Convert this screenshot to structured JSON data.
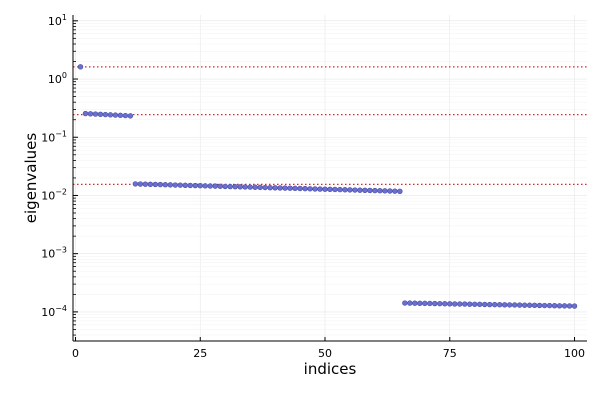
{
  "chart_data": {
    "type": "scatter",
    "xlabel": "indices",
    "ylabel": "eigenvalues",
    "y_scale": "log10",
    "xlim": [
      -0.5,
      102.5
    ],
    "ylim_exp": [
      -4.5,
      1.1
    ],
    "x_ticks": [
      {
        "value": 0,
        "label": "0"
      },
      {
        "value": 25,
        "label": "25"
      },
      {
        "value": 50,
        "label": "50"
      },
      {
        "value": 75,
        "label": "75"
      },
      {
        "value": 100,
        "label": "100"
      }
    ],
    "y_ticks": [
      {
        "exp": -4,
        "base": "10",
        "sup": "−4"
      },
      {
        "exp": -3,
        "base": "10",
        "sup": "−3"
      },
      {
        "exp": -2,
        "base": "10",
        "sup": "−2"
      },
      {
        "exp": -1,
        "base": "10",
        "sup": "−1"
      },
      {
        "exp": 0,
        "base": "10",
        "sup": "0"
      },
      {
        "exp": 1,
        "base": "10",
        "sup": "1"
      }
    ],
    "grid": true,
    "legend": false,
    "point_color": "#6b6fcf",
    "point_edge": "#4a4fa8",
    "reference_color": "#d62728",
    "reference_lines": [
      1.62,
      0.245,
      0.0155
    ],
    "groups": [
      {
        "x_start": 1,
        "x_end": 1,
        "y_start": 1.62,
        "y_end": 1.62
      },
      {
        "x_start": 2,
        "x_end": 11,
        "y_start": 0.255,
        "y_end": 0.233
      },
      {
        "x_start": 12,
        "x_end": 65,
        "y_start": 0.0158,
        "y_end": 0.0118
      },
      {
        "x_start": 66,
        "x_end": 100,
        "y_start": 0.000142,
        "y_end": 0.000126
      }
    ]
  }
}
